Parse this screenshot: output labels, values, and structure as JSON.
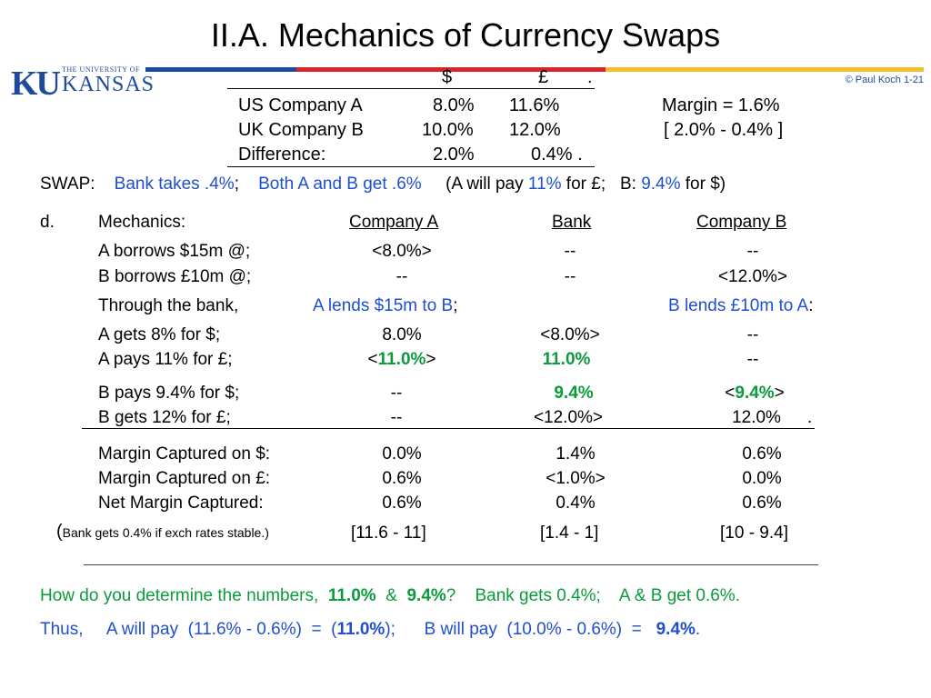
{
  "title": "II.A.  Mechanics of Currency Swaps",
  "logo": {
    "initials": "KU",
    "univ": "THE UNIVERSITY OF",
    "name": "KANSAS"
  },
  "colors": {
    "blue_bar": "#1d4a9a",
    "red_bar": "#d6262b",
    "yellow_bar": "#f2c12e",
    "text_blue": "#1f4fcf",
    "text_green": "#0b9a3c"
  },
  "copyright": "© Paul Koch 1-21",
  "rates_table": {
    "col_usd": "$",
    "col_gbp": "£",
    "col_end": ".",
    "rows": [
      {
        "label": "US Company A",
        "usd": "8.0%",
        "gbp": "11.6%"
      },
      {
        "label": "UK Company B",
        "usd": "10.0%",
        "gbp": "12.0%"
      },
      {
        "label": "Difference:",
        "usd": "2.0%",
        "gbp": "0.4%  ."
      }
    ],
    "margin": "Margin  =  1.6%",
    "margin_detail": "[ 2.0% - 0.4% ]"
  },
  "swap": {
    "prefix": "SWAP:",
    "bank": "Bank takes .4%",
    "sep1": ";",
    "both": "Both  A  and  B  get .6%",
    "a_will_pay": "(A will pay ",
    "a_rate": "11%",
    "for_gbp": " for £;   B: ",
    "b_rate": "9.4%",
    "for_usd": " for $)"
  },
  "mechanics": {
    "letter": "d.",
    "label": "Mechanics:",
    "col_a": "Company A",
    "col_bank": "Bank",
    "col_b": "Company B",
    "borrow_rows": [
      {
        "label": "A borrows $15m @;",
        "a": "<8.0%>",
        "bank": "--",
        "b": "--"
      },
      {
        "label": "B borrows £10m @;",
        "a": "--",
        "bank": "--",
        "b": "<12.0%>"
      }
    ],
    "through": "Through the bank,",
    "a_lends": "A lends $15m to B",
    "a_lends_punct": ";",
    "b_lends": "B lends £10m to A",
    "b_lends_punct": ":",
    "a_gets": {
      "label": "A gets  8%   for $;",
      "a": "8.0%",
      "bank": "<8.0%>",
      "b": "--"
    },
    "a_pays": {
      "label": "A pays 11% for £;",
      "a_pre": "<",
      "a_val": "11.0%",
      "a_post": ">",
      "bank": "11.0%",
      "b": "--"
    },
    "b_pays": {
      "label": "B pays 9.4% for $;",
      "a": "--",
      "bank": "9.4%",
      "b_pre": "<",
      "b_val": "9.4%",
      "b_post": ">"
    },
    "b_gets": {
      "label": "B gets 12%   for £;",
      "a": "--",
      "bank": "<12.0%>",
      "b": "12.0%",
      "end": "."
    },
    "margin_rows": [
      {
        "label": "Margin Captured on $:",
        "a": "0.0%",
        "bank": "1.4%",
        "b": "0.6%"
      },
      {
        "label": "Margin Captured on £:",
        "a": "0.6%",
        "bank": "<1.0%>",
        "b": "0.0%"
      },
      {
        "label": "Net Margin Captured:",
        "a": "0.6%",
        "bank": "0.4%",
        "b": "0.6%"
      }
    ],
    "note_open": "(",
    "note": "Bank gets 0.4% if exch rates stable.)",
    "calc_a": "[11.6 - 11]",
    "calc_bank": "[1.4 - 1]",
    "calc_b": "[10 - 9.4]"
  },
  "question": {
    "text": "How do you determine the numbers,  ",
    "v1": "11.0%",
    "amp": "  &  ",
    "v2": "9.4%",
    "rest": "?    Bank gets 0.4%;    A & B get 0.6%."
  },
  "thus": {
    "t1": "Thus,     A will pay  (11.6% - 0.6%)  =  (",
    "v1": "11.0%",
    "t2": ");      B will pay  (10.0% - 0.6%)  =   ",
    "v2": "9.4%",
    "t3": "."
  }
}
